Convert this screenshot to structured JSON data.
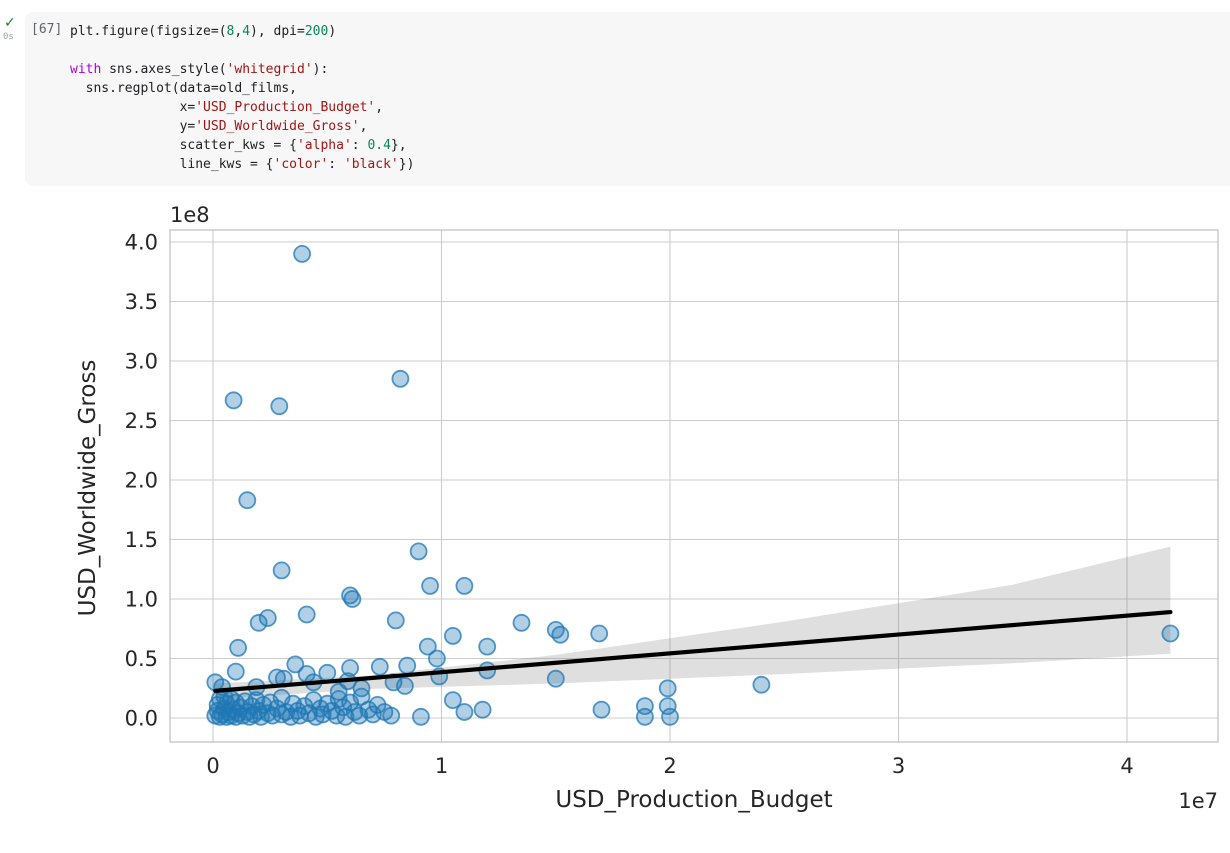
{
  "notebook_cell": {
    "status_icon": "check-success",
    "execution_count": "[67]",
    "execution_time": "0s",
    "token_colors": {
      "p": "#202124",
      "k": "#af00db",
      "s": "#a31515",
      "n": "#098658"
    },
    "code_lines": [
      [
        [
          "p",
          "plt.figure(figsize=("
        ],
        [
          "n",
          "8"
        ],
        [
          "p",
          ","
        ],
        [
          "n",
          "4"
        ],
        [
          "p",
          "), dpi="
        ],
        [
          "n",
          "200"
        ],
        [
          "p",
          ")"
        ]
      ],
      [],
      [
        [
          "k",
          "with"
        ],
        [
          "p",
          " sns.axes_style("
        ],
        [
          "s",
          "'whitegrid'"
        ],
        [
          "p",
          "):"
        ]
      ],
      [
        [
          "p",
          "  sns.regplot(data=old_films,"
        ]
      ],
      [
        [
          "p",
          "              x="
        ],
        [
          "s",
          "'USD_Production_Budget'"
        ],
        [
          "p",
          ","
        ]
      ],
      [
        [
          "p",
          "              y="
        ],
        [
          "s",
          "'USD_Worldwide_Gross'"
        ],
        [
          "p",
          ","
        ]
      ],
      [
        [
          "p",
          "              scatter_kws = {"
        ],
        [
          "s",
          "'alpha'"
        ],
        [
          "p",
          ": "
        ],
        [
          "n",
          "0.4"
        ],
        [
          "p",
          "},"
        ]
      ],
      [
        [
          "p",
          "              line_kws = {"
        ],
        [
          "s",
          "'color'"
        ],
        [
          "p",
          ": "
        ],
        [
          "s",
          "'black'"
        ],
        [
          "p",
          "})"
        ]
      ]
    ]
  },
  "chart_data": {
    "type": "scatter",
    "title": "",
    "xlabel": "USD_Production_Budget",
    "ylabel": "USD_Worldwide_Gross",
    "x_offset_text": "1e7",
    "y_offset_text": "1e8",
    "x_units": "1e7",
    "y_units": "1e8",
    "xlim": [
      -0.19,
      4.4
    ],
    "ylim": [
      -0.2,
      4.1
    ],
    "grid": true,
    "legend": false,
    "x_ticks": [
      0,
      1,
      2,
      3,
      4
    ],
    "x_tick_labels": [
      "0",
      "1",
      "2",
      "3",
      "4"
    ],
    "y_ticks": [
      0.0,
      0.5,
      1.0,
      1.5,
      2.0,
      2.5,
      3.0,
      3.5,
      4.0
    ],
    "y_tick_labels": [
      "0.0",
      "0.5",
      "1.0",
      "1.5",
      "2.0",
      "2.5",
      "3.0",
      "3.5",
      "4.0"
    ],
    "marker_color": "#1f77b4",
    "marker_alpha": 0.4,
    "grid_color": "#cccccc",
    "spine_color": "#c8c8c8",
    "tick_label_color": "#262626",
    "regression_line": {
      "color": "#000000",
      "x1": 0.01,
      "y1": 0.228,
      "x2": 4.19,
      "y2": 0.89
    },
    "ci_band": {
      "fill": "#808080",
      "opacity": 0.25,
      "upper": [
        [
          0.01,
          0.29
        ],
        [
          0.7,
          0.36
        ],
        [
          1.5,
          0.53
        ],
        [
          2.5,
          0.81
        ],
        [
          3.5,
          1.12
        ],
        [
          4.19,
          1.44
        ]
      ],
      "lower": [
        [
          4.19,
          0.54
        ],
        [
          3.5,
          0.46
        ],
        [
          2.5,
          0.37
        ],
        [
          1.5,
          0.29
        ],
        [
          0.7,
          0.245
        ],
        [
          0.01,
          0.16
        ]
      ]
    },
    "points": [
      [
        0.39,
        3.9
      ],
      [
        0.82,
        2.85
      ],
      [
        0.09,
        2.67
      ],
      [
        0.29,
        2.62
      ],
      [
        0.15,
        1.83
      ],
      [
        0.9,
        1.4
      ],
      [
        0.3,
        1.24
      ],
      [
        0.95,
        1.11
      ],
      [
        1.1,
        1.11
      ],
      [
        0.6,
        1.03
      ],
      [
        0.61,
        1.0
      ],
      [
        0.2,
        0.8
      ],
      [
        0.24,
        0.84
      ],
      [
        0.41,
        0.87
      ],
      [
        0.8,
        0.82
      ],
      [
        1.05,
        0.69
      ],
      [
        1.35,
        0.8
      ],
      [
        1.5,
        0.74
      ],
      [
        1.52,
        0.7
      ],
      [
        1.69,
        0.71
      ],
      [
        4.19,
        0.71
      ],
      [
        0.11,
        0.59
      ],
      [
        0.94,
        0.6
      ],
      [
        1.2,
        0.6
      ],
      [
        0.98,
        0.5
      ],
      [
        0.6,
        0.42
      ],
      [
        0.59,
        0.31
      ],
      [
        0.36,
        0.45
      ],
      [
        0.41,
        0.37
      ],
      [
        0.5,
        0.38
      ],
      [
        0.28,
        0.34
      ],
      [
        0.31,
        0.33
      ],
      [
        0.1,
        0.39
      ],
      [
        0.99,
        0.35
      ],
      [
        1.2,
        0.4
      ],
      [
        1.5,
        0.33
      ],
      [
        2.4,
        0.28
      ],
      [
        1.99,
        0.25
      ],
      [
        0.01,
        0.3
      ],
      [
        0.04,
        0.26
      ],
      [
        0.19,
        0.26
      ],
      [
        0.85,
        0.44
      ],
      [
        0.73,
        0.43
      ],
      [
        0.44,
        0.3
      ],
      [
        0.55,
        0.22
      ],
      [
        0.65,
        0.25
      ],
      [
        0.84,
        0.27
      ],
      [
        0.79,
        0.3
      ],
      [
        1.89,
        0.1
      ],
      [
        1.89,
        0.01
      ],
      [
        1.99,
        0.1
      ],
      [
        2.0,
        0.01
      ],
      [
        1.7,
        0.07
      ],
      [
        1.18,
        0.07
      ],
      [
        1.05,
        0.15
      ],
      [
        1.1,
        0.05
      ],
      [
        0.91,
        0.01
      ],
      [
        0.01,
        0.02
      ],
      [
        0.02,
        0.06
      ],
      [
        0.02,
        0.11
      ],
      [
        0.03,
        0.01
      ],
      [
        0.03,
        0.16
      ],
      [
        0.04,
        0.03
      ],
      [
        0.05,
        0.08
      ],
      [
        0.05,
        0.18
      ],
      [
        0.06,
        0.01
      ],
      [
        0.06,
        0.12
      ],
      [
        0.07,
        0.05
      ],
      [
        0.08,
        0.02
      ],
      [
        0.08,
        0.16
      ],
      [
        0.09,
        0.07
      ],
      [
        0.1,
        0.01
      ],
      [
        0.1,
        0.13
      ],
      [
        0.11,
        0.04
      ],
      [
        0.12,
        0.09
      ],
      [
        0.13,
        0.02
      ],
      [
        0.14,
        0.14
      ],
      [
        0.15,
        0.05
      ],
      [
        0.16,
        0.01
      ],
      [
        0.17,
        0.1
      ],
      [
        0.18,
        0.03
      ],
      [
        0.19,
        0.15
      ],
      [
        0.2,
        0.06
      ],
      [
        0.21,
        0.01
      ],
      [
        0.22,
        0.11
      ],
      [
        0.24,
        0.04
      ],
      [
        0.25,
        0.13
      ],
      [
        0.26,
        0.02
      ],
      [
        0.28,
        0.08
      ],
      [
        0.3,
        0.03
      ],
      [
        0.3,
        0.17
      ],
      [
        0.32,
        0.05
      ],
      [
        0.34,
        0.01
      ],
      [
        0.35,
        0.12
      ],
      [
        0.37,
        0.06
      ],
      [
        0.38,
        0.02
      ],
      [
        0.4,
        0.1
      ],
      [
        0.42,
        0.04
      ],
      [
        0.44,
        0.15
      ],
      [
        0.45,
        0.01
      ],
      [
        0.47,
        0.08
      ],
      [
        0.48,
        0.03
      ],
      [
        0.5,
        0.12
      ],
      [
        0.52,
        0.06
      ],
      [
        0.54,
        0.02
      ],
      [
        0.55,
        0.16
      ],
      [
        0.57,
        0.09
      ],
      [
        0.58,
        0.01
      ],
      [
        0.6,
        0.13
      ],
      [
        0.62,
        0.05
      ],
      [
        0.64,
        0.02
      ],
      [
        0.65,
        0.18
      ],
      [
        0.68,
        0.07
      ],
      [
        0.7,
        0.03
      ],
      [
        0.72,
        0.11
      ],
      [
        0.75,
        0.05
      ],
      [
        0.78,
        0.02
      ]
    ]
  }
}
